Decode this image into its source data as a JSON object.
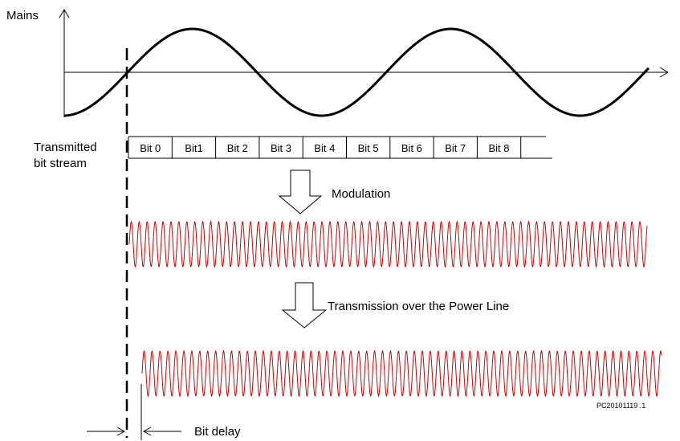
{
  "labels": {
    "mains": "Mains",
    "transmitted_line1": "Transmitted",
    "transmitted_line2": "bit stream",
    "modulation": "Modulation",
    "transmission": "Transmission over the Power Line",
    "bit_delay": "Bit delay",
    "figure_code": "PC20101119 .1"
  },
  "bits": [
    "Bit 0",
    "Bit1",
    "Bit 2",
    "Bit 3",
    "Bit 4",
    "Bit 5",
    "Bit 6",
    "Bit 7",
    "Bit 8"
  ],
  "colors": {
    "line": "#000000",
    "signal": "#d40000"
  }
}
